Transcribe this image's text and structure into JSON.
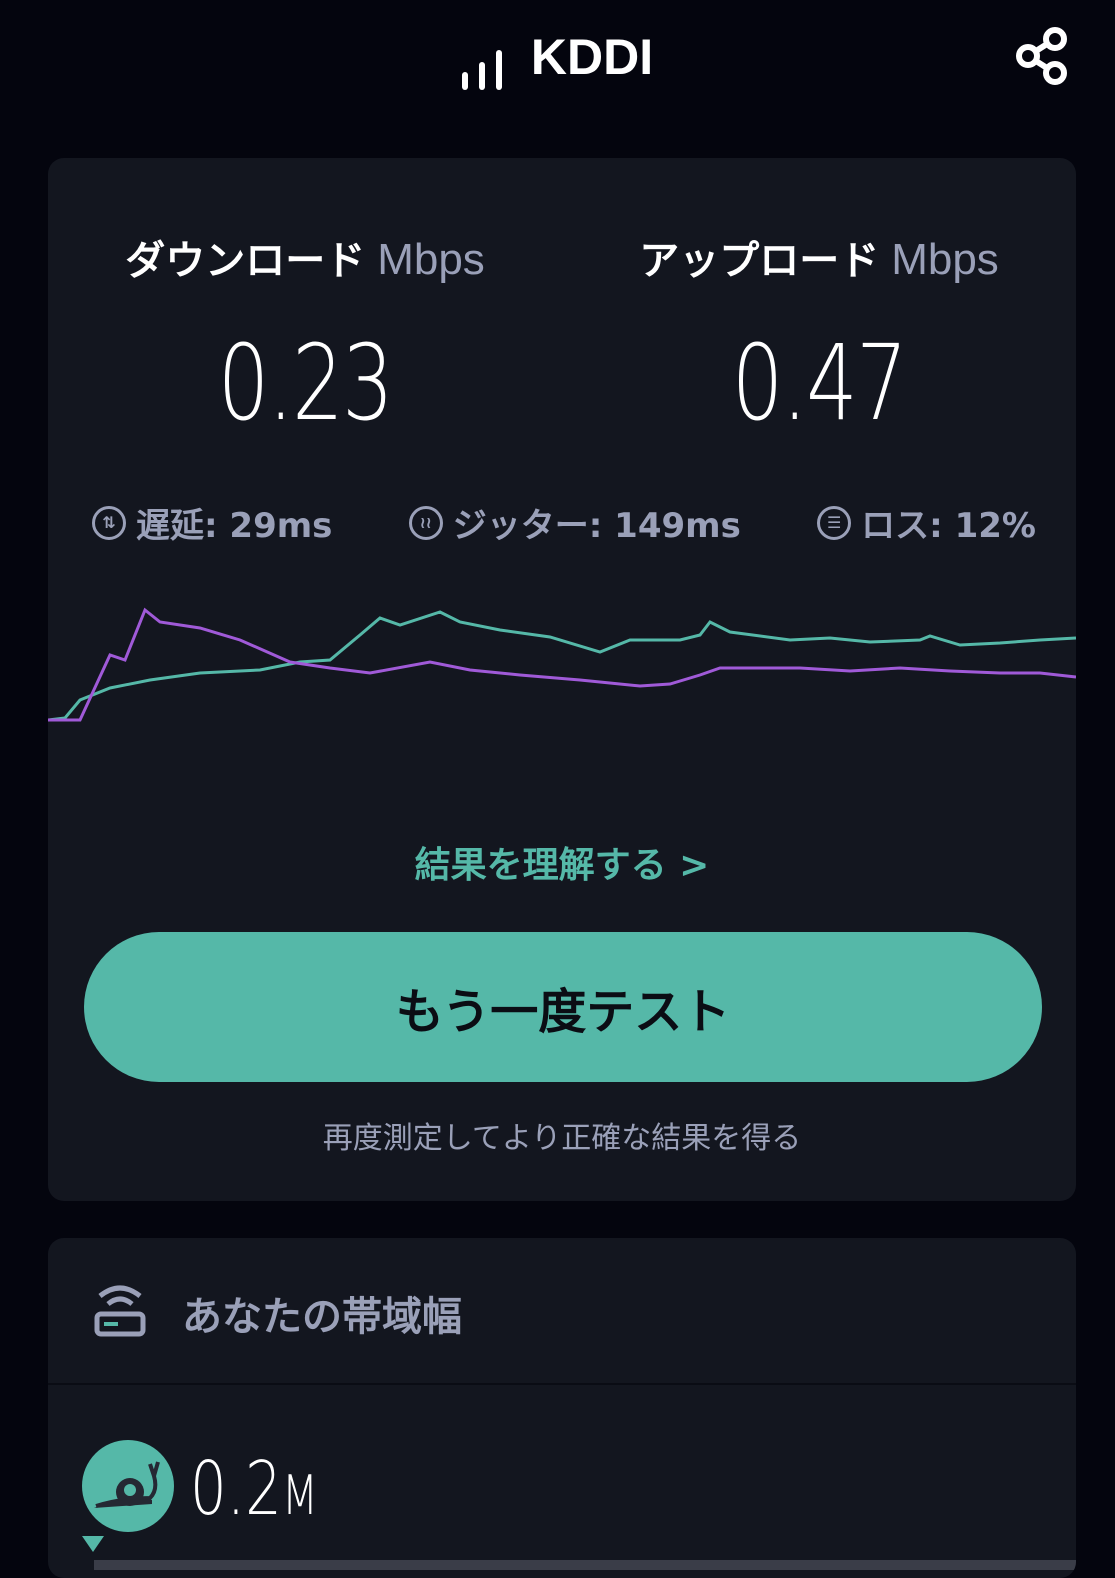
{
  "header": {
    "carrier": "KDDI",
    "signal_icon": "signal-bars-icon",
    "share_icon": "share-icon"
  },
  "results": {
    "download": {
      "label": "ダウンロード",
      "unit": "Mbps",
      "value": "0.23"
    },
    "upload": {
      "label": "アップロード",
      "unit": "Mbps",
      "value": "0.47"
    },
    "stats": [
      {
        "icon": "latency-icon",
        "text": "遅延: 29ms"
      },
      {
        "icon": "jitter-icon",
        "text": "ジッター: 149ms"
      },
      {
        "icon": "loss-icon",
        "text": "ロス: 12%"
      }
    ],
    "graph": {
      "download_color": "#a05ad8",
      "upload_color": "#55b8a8"
    },
    "understand_link": "結果を理解する >",
    "retest_button": "もう一度テスト",
    "retest_hint": "再度測定してより正確な結果を得る"
  },
  "bandwidth": {
    "title": "あなたの帯域幅",
    "value": "0.2",
    "unit": "M",
    "icon": "snail-icon"
  },
  "colors": {
    "accent": "#55b8a8",
    "background": "#04050e",
    "card": "#13161f"
  }
}
